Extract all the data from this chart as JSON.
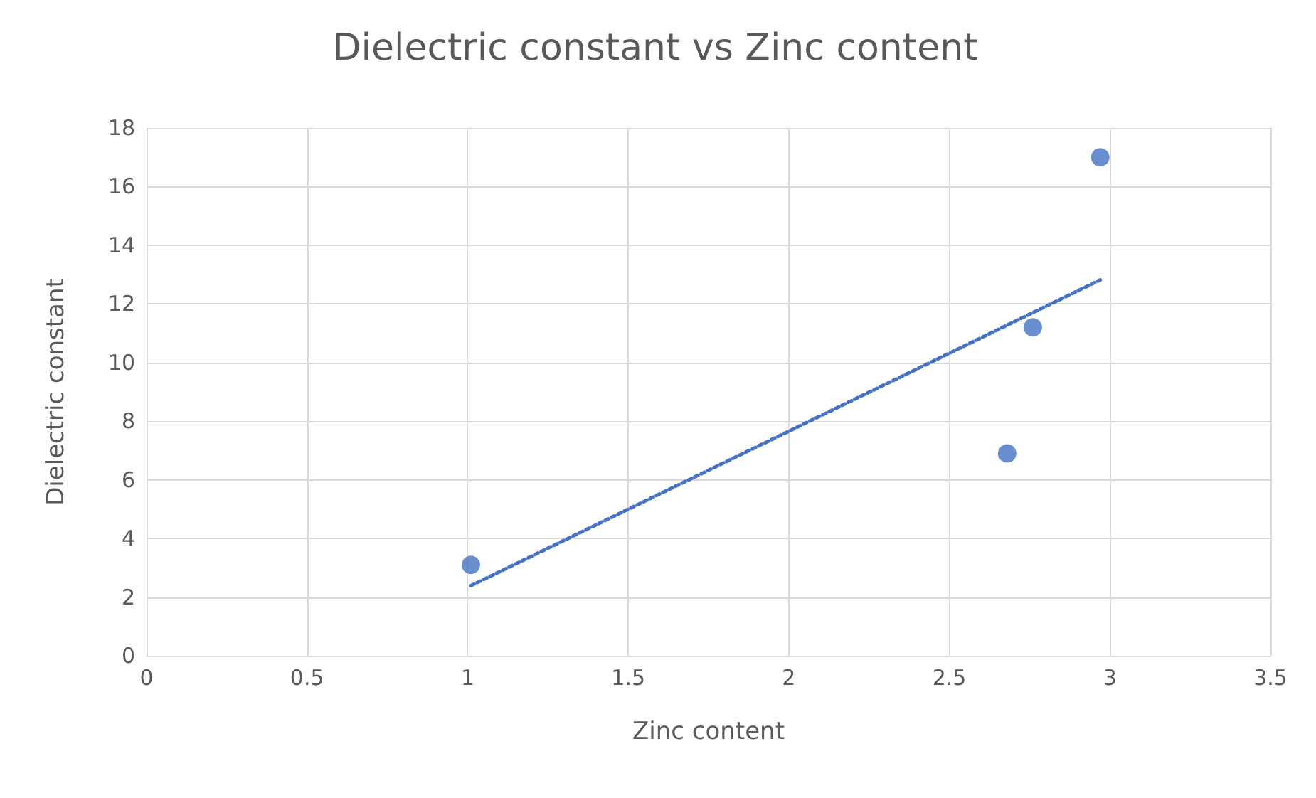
{
  "chart_data": {
    "type": "scatter",
    "title": "Dielectric constant vs Zinc content",
    "xlabel": "Zinc content",
    "ylabel": "Dielectric constant",
    "xlim": [
      0,
      3.5
    ],
    "xticks": [
      0,
      0.5,
      1,
      1.5,
      2,
      2.5,
      3,
      3.5
    ],
    "ylim": [
      0,
      18
    ],
    "yticks": [
      0,
      2,
      4,
      6,
      8,
      10,
      12,
      14,
      16,
      18
    ],
    "grid": true,
    "marker": "circle",
    "series": [
      {
        "color": "#4472c4",
        "x": [
          1.01,
          2.68,
          2.76,
          2.97
        ],
        "values": [
          3.1,
          6.9,
          11.2,
          17.0
        ]
      },
      {
        "type": "line",
        "color": "#4472c4",
        "line_style": "dotted",
        "marker": "none",
        "x": [
          1.01,
          2.97
        ],
        "values": [
          2.39,
          12.82
        ]
      }
    ]
  }
}
